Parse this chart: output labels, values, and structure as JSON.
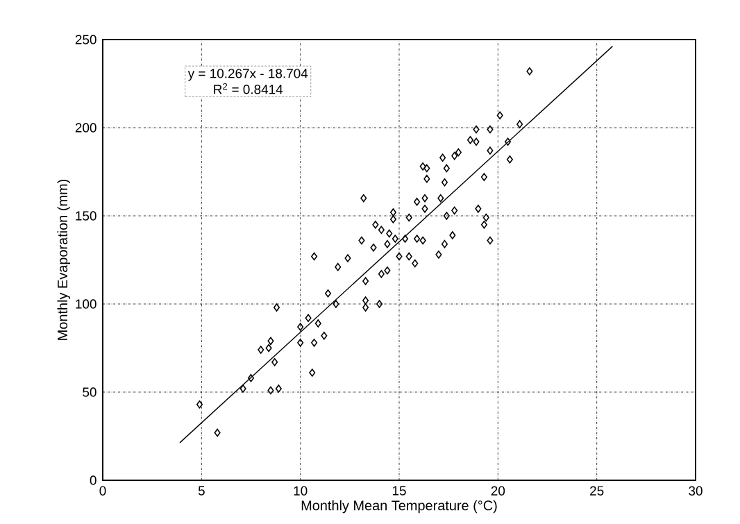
{
  "chart_data": {
    "type": "scatter",
    "xlabel": "Monthly Mean Temperature (°C)",
    "ylabel": "Monthly Evaporation (mm)",
    "xlim": [
      0,
      30
    ],
    "ylim": [
      0,
      250
    ],
    "xticks": [
      0,
      5,
      10,
      15,
      20,
      25,
      30
    ],
    "yticks": [
      0,
      50,
      100,
      150,
      200,
      250
    ],
    "grid": true,
    "marker": "diamond",
    "annotations": [
      "y = 10.267x - 18.704",
      "R$^{2}$ = 0.8414"
    ],
    "series": [
      {
        "color": "#000000",
        "x": [
          4.9,
          5.8,
          7.1,
          7.5,
          8.0,
          8.4,
          8.5,
          8.7,
          8.5,
          8.9,
          8.8,
          10.0,
          10.4,
          10.0,
          10.7,
          10.6,
          10.7,
          10.9,
          11.2,
          11.4,
          11.8,
          11.9,
          12.4,
          13.2,
          13.1,
          13.3,
          13.3,
          13.3,
          13.7,
          13.8,
          14.1,
          14.0,
          14.1,
          14.4,
          14.4,
          14.5,
          14.7,
          14.7,
          14.8,
          15.0,
          15.3,
          15.5,
          15.5,
          15.8,
          15.9,
          15.9,
          16.2,
          16.3,
          16.3,
          16.2,
          16.4,
          16.4,
          17.0,
          17.1,
          17.3,
          17.3,
          17.2,
          17.4,
          17.4,
          17.7,
          17.8,
          17.8,
          18.0,
          18.6,
          18.9,
          18.9,
          19.0,
          19.3,
          19.4,
          19.3,
          19.6,
          19.6,
          19.6,
          20.1,
          20.5,
          20.6,
          21.1,
          21.6
        ],
        "values": [
          43,
          27,
          52,
          58,
          74,
          75,
          79,
          67,
          51,
          52,
          98,
          87,
          92,
          78,
          78,
          61,
          127,
          89,
          82,
          106,
          100,
          121,
          126,
          160,
          136,
          113,
          102,
          98,
          132,
          145,
          142,
          100,
          117,
          134,
          119,
          140,
          148,
          152,
          137,
          127,
          137,
          149,
          127,
          123,
          158,
          137,
          136,
          160,
          154,
          178,
          177,
          171,
          128,
          160,
          134,
          169,
          183,
          177,
          150,
          139,
          153,
          184,
          186,
          193,
          199,
          192,
          154,
          172,
          149,
          145,
          199,
          187,
          136,
          207,
          192,
          182,
          202,
          232
        ]
      },
      {
        "type": "line",
        "color": "#000000",
        "marker": "none",
        "line_style": "solid",
        "x": [
          3.9,
          25.8
        ],
        "values": [
          21.3,
          246.2
        ]
      }
    ]
  }
}
